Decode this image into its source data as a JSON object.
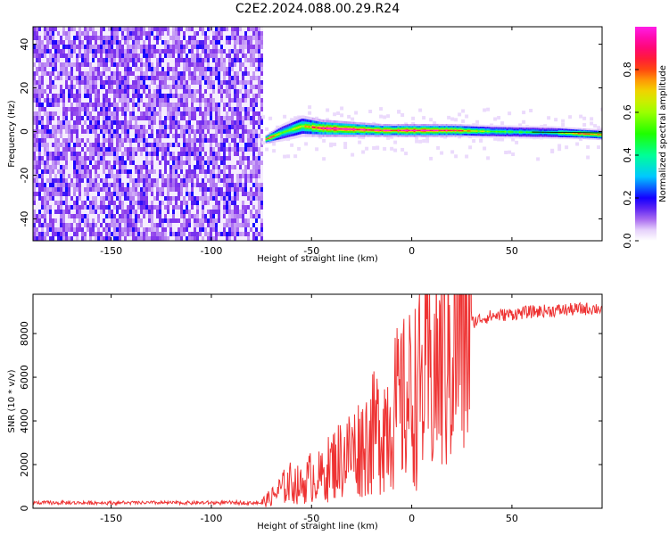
{
  "figure": {
    "title": "C2E2.2024.088.00.29.R24"
  },
  "chart_data": [
    {
      "type": "heatmap",
      "title": "C2E2.2024.088.00.29.R24",
      "xlabel": "Height of straight line (km)",
      "ylabel": "Frequency (Hz)",
      "xlim": [
        -189,
        95
      ],
      "ylim": [
        -50,
        48
      ],
      "xticks": [
        -150,
        -100,
        -50,
        0,
        50
      ],
      "yticks": [
        -40,
        -20,
        0,
        20,
        40
      ],
      "colorbar": {
        "label": "Normalized spectral amplitude",
        "range": [
          0,
          1
        ],
        "ticks": [
          0.0,
          0.2,
          0.4,
          0.6,
          0.8
        ],
        "colormap": "gist_ncar_like"
      },
      "noise_region": {
        "x": [
          -189,
          -75
        ],
        "y": [
          -50,
          48
        ],
        "amplitude": 0.15
      },
      "signal_track": {
        "points": [
          {
            "x": -73,
            "y": -3.5,
            "amplitude": 1.0,
            "half_width": 2.0
          },
          {
            "x": -65,
            "y": -0.5,
            "amplitude": 0.55,
            "half_width": 4.0
          },
          {
            "x": -55,
            "y": 2.5,
            "amplitude": 0.6,
            "half_width": 5.0
          },
          {
            "x": -45,
            "y": 1.5,
            "amplitude": 1.0,
            "half_width": 4.0
          },
          {
            "x": -30,
            "y": 1.0,
            "amplitude": 0.95,
            "half_width": 3.5
          },
          {
            "x": -15,
            "y": 0.5,
            "amplitude": 0.9,
            "half_width": 3.0
          },
          {
            "x": 0,
            "y": 0.5,
            "amplitude": 1.0,
            "half_width": 3.0
          },
          {
            "x": 20,
            "y": 0.5,
            "amplitude": 0.9,
            "half_width": 3.0
          },
          {
            "x": 40,
            "y": 0.0,
            "amplitude": 0.5,
            "half_width": 3.0
          },
          {
            "x": 70,
            "y": -0.5,
            "amplitude": 0.45,
            "half_width": 3.0
          },
          {
            "x": 85,
            "y": -1.0,
            "amplitude": 0.8,
            "half_width": 2.5
          },
          {
            "x": 95,
            "y": -1.5,
            "amplitude": 0.75,
            "half_width": 2.5
          }
        ]
      }
    },
    {
      "type": "line",
      "xlabel": "Height of straight line (km)",
      "ylabel": "SNR (10 * v/v)",
      "xlim": [
        -189,
        95
      ],
      "ylim": [
        0,
        9800
      ],
      "xticks": [
        -150,
        -100,
        -50,
        0,
        50
      ],
      "yticks": [
        0,
        2000,
        4000,
        6000,
        8000
      ],
      "color": "#ee3333",
      "series": [
        {
          "x": [
            -189,
            -75,
            -70,
            -65,
            -60,
            -55,
            -50,
            -45,
            -40,
            -35,
            -30,
            -25,
            -20,
            -15,
            -10,
            -5,
            0,
            5,
            10,
            15,
            20,
            25,
            30,
            35,
            40,
            50,
            60,
            70,
            80,
            90,
            95
          ],
          "values": [
            250,
            250,
            500,
            900,
            1200,
            1000,
            1500,
            1400,
            2000,
            2300,
            2600,
            2900,
            3300,
            3800,
            4300,
            4700,
            5100,
            5500,
            6000,
            6700,
            7500,
            8200,
            8500,
            8700,
            8800,
            8900,
            9000,
            9050,
            9100,
            9150,
            9150
          ]
        }
      ]
    }
  ]
}
